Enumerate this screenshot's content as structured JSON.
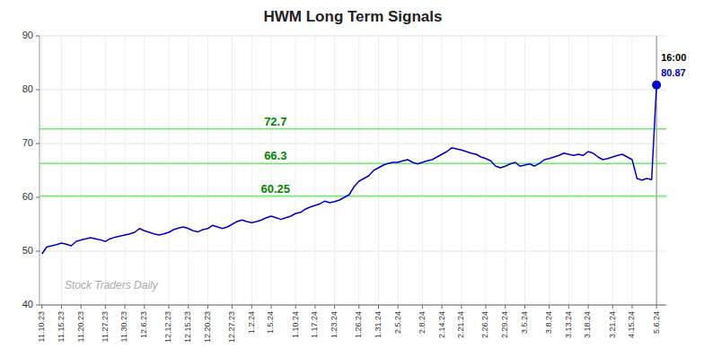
{
  "chart_data": {
    "type": "line",
    "title": "HWM Long Term Signals",
    "categories": [
      "11.10.23",
      null,
      null,
      null,
      "11.15.23",
      null,
      null,
      null,
      "11.20.23",
      null,
      null,
      null,
      null,
      "11.27.23",
      null,
      null,
      null,
      "11.30.23",
      null,
      null,
      null,
      "12.6.23",
      null,
      null,
      null,
      null,
      "12.12.23",
      null,
      null,
      null,
      "12.15.23",
      null,
      null,
      null,
      "12.20.23",
      null,
      null,
      null,
      null,
      "12.27.23",
      null,
      null,
      null,
      "1.2.24",
      null,
      null,
      null,
      "1.5.24",
      null,
      null,
      null,
      null,
      "1.10.24",
      null,
      null,
      null,
      "1.17.24",
      null,
      null,
      null,
      "1.23.24",
      null,
      null,
      null,
      null,
      "1.26.24",
      null,
      null,
      null,
      "1.31.24",
      null,
      null,
      null,
      "2.5.24",
      null,
      null,
      null,
      null,
      "2.8.24",
      null,
      null,
      null,
      "2.14.24",
      null,
      null,
      null,
      "2.21.24",
      null,
      null,
      null,
      null,
      "2.26.24",
      null,
      null,
      null,
      "2.29.24",
      null,
      null,
      null,
      "3.5.24",
      null,
      null,
      null,
      null,
      "3.8.24",
      null,
      null,
      null,
      "3.13.24",
      null,
      null,
      null,
      "3.18.24",
      null,
      null,
      null,
      null,
      "3.21.24",
      null,
      null,
      null,
      "4.15.24",
      null,
      null,
      null,
      null,
      "5.6.24"
    ],
    "series": [
      {
        "name": "HWM",
        "color": "#0000cc",
        "values": [
          49.5,
          50.8,
          51.0,
          51.2,
          51.5,
          51.3,
          51.0,
          51.8,
          52.1,
          52.3,
          52.5,
          52.3,
          52.1,
          51.8,
          52.3,
          52.6,
          52.8,
          53.0,
          53.2,
          53.5,
          54.2,
          53.8,
          53.5,
          53.2,
          53.0,
          53.2,
          53.5,
          54.0,
          54.3,
          54.5,
          54.2,
          53.8,
          53.6,
          54.0,
          54.2,
          54.8,
          54.5,
          54.2,
          54.5,
          55.0,
          55.5,
          55.8,
          55.5,
          55.3,
          55.5,
          55.8,
          56.2,
          56.5,
          56.2,
          55.9,
          56.2,
          56.5,
          57.0,
          57.2,
          57.8,
          58.2,
          58.5,
          58.8,
          59.3,
          59.0,
          59.2,
          59.5,
          60.0,
          60.5,
          62.0,
          63.0,
          63.5,
          64.0,
          65.0,
          65.5,
          66.0,
          66.3,
          66.5,
          66.5,
          66.8,
          67.0,
          66.5,
          66.2,
          66.5,
          66.8,
          67.0,
          67.5,
          68.0,
          68.5,
          69.2,
          69.0,
          68.8,
          68.5,
          68.2,
          68.0,
          67.5,
          67.2,
          66.8,
          65.8,
          65.5,
          65.8,
          66.2,
          66.5,
          65.8,
          66.0,
          66.2,
          65.8,
          66.3,
          67.0,
          67.2,
          67.5,
          67.8,
          68.2,
          68.0,
          67.8,
          68.0,
          67.8,
          68.5,
          68.2,
          67.5,
          67.0,
          67.2,
          67.5,
          67.8,
          68.0,
          67.5,
          67.0,
          63.5,
          63.2,
          63.5,
          63.3,
          80.87
        ]
      }
    ],
    "ylim": [
      40,
      90
    ],
    "yticks": [
      40,
      50,
      60,
      70,
      80,
      90
    ],
    "grid": true,
    "hlines": [
      {
        "y": 72.7,
        "label": "72.7",
        "color": "#66ee66"
      },
      {
        "y": 66.3,
        "label": "66.3",
        "color": "#66ee66"
      },
      {
        "y": 60.25,
        "label": "60.25",
        "color": "#66ee66"
      }
    ],
    "hline_label_color": "#008800",
    "annotations": [
      {
        "text": "16:00",
        "color": "#000000"
      },
      {
        "text": "80.87",
        "color": "#0000cc"
      }
    ],
    "watermark": "Stock Traders Daily",
    "watermark_color": "#aaaaaa"
  }
}
